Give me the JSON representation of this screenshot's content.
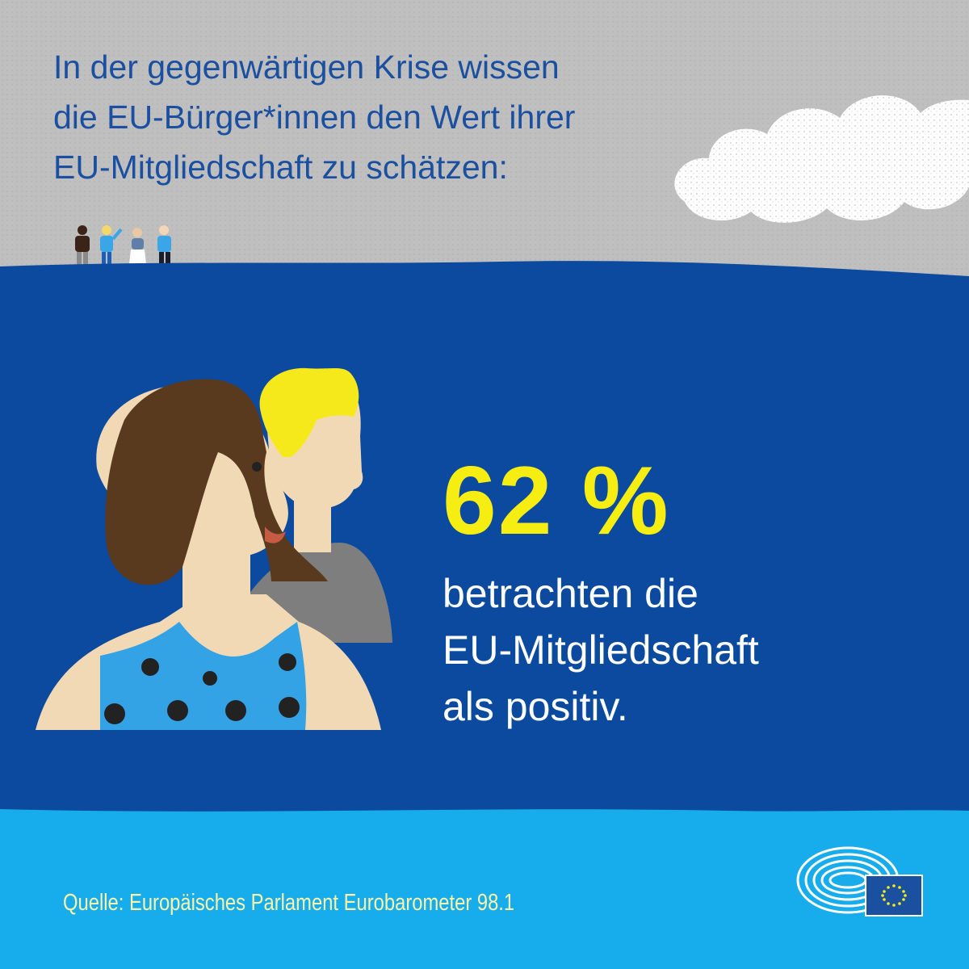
{
  "headline": {
    "lines": [
      "In der gegenwärtigen Krise wissen",
      "die EU-Bürger*innen den Wert ihrer",
      "EU-Mitgliedschaft zu schätzen:"
    ]
  },
  "statistic": {
    "value": "62 %",
    "description_lines": [
      "betrachten die",
      "EU-Mitgliedschaft",
      "als positiv."
    ]
  },
  "source": "Quelle: Europäisches Parlament Eurobarometer  98.1",
  "icons": [
    "cloud-icon",
    "people-group-icon",
    "woman-portrait-icon",
    "man-portrait-icon",
    "european-parliament-logo-icon",
    "eu-flag-icon"
  ],
  "colors": {
    "sky": "#bfbfbf",
    "dark_blue": "#0b4a9f",
    "light_blue": "#17adec",
    "headline_text": "#1b4fa0",
    "stat_value": "#f6ee12",
    "source_text": "#fbf3a8"
  }
}
